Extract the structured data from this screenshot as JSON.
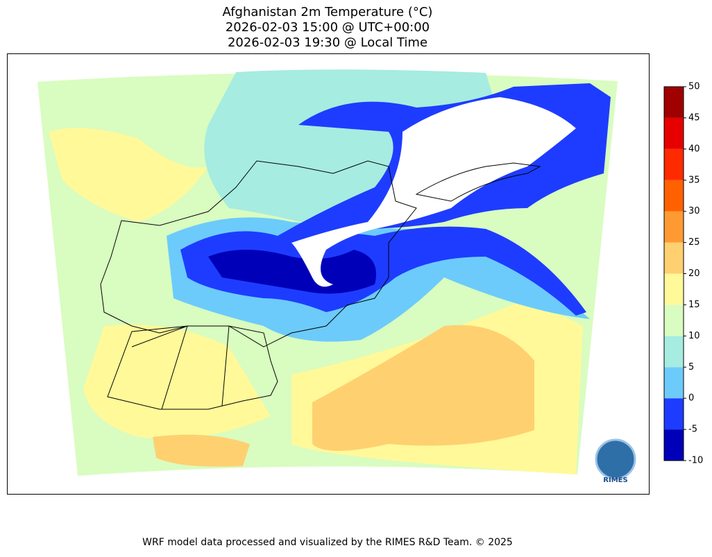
{
  "header": {
    "lines": [
      "Afghanistan 2m Temperature (°C)",
      "2026-02-03 15:00 @ UTC+00:00",
      "2026-02-03 19:30 @ Local Time"
    ]
  },
  "colorbar": {
    "ticks": [
      -10,
      -5,
      0,
      5,
      10,
      15,
      20,
      25,
      30,
      35,
      40,
      45,
      50
    ],
    "colors": [
      "#0000b8",
      "#1e3cff",
      "#6ccbfa",
      "#a6ece0",
      "#d9fcc0",
      "#fff99a",
      "#ffd070",
      "#ff9a33",
      "#ff6100",
      "#ff2a00",
      "#e60000",
      "#a00000"
    ]
  },
  "logo": {
    "label": "RIMES"
  },
  "footer": {
    "text": "WRF model data processed and visualized by the RIMES R&D Team. © 2025"
  }
}
